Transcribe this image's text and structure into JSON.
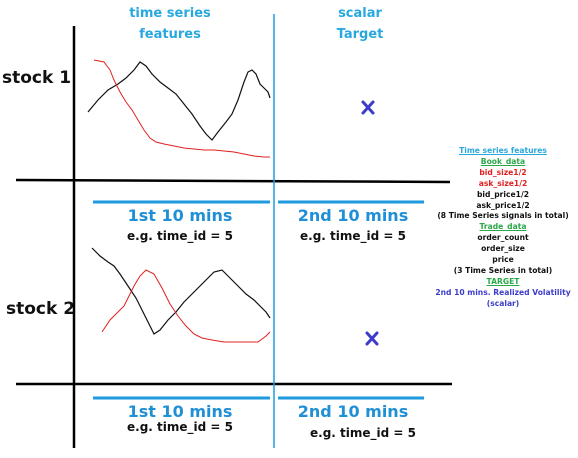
{
  "headers": {
    "left_line1": "time series",
    "left_line2": "features",
    "right_line1": "scalar",
    "right_line2": "Target"
  },
  "rows": [
    {
      "label": "stock 1",
      "left_segment": "1st 10 mins",
      "left_example": "e.g. time_id = 5",
      "right_segment": "2nd 10 mins",
      "right_example": "e.g. time_id = 5"
    },
    {
      "label": "stock 2",
      "left_segment": "1st 10 mins",
      "left_example": "e.g. time_id = 5",
      "right_segment": "2nd 10 mins",
      "right_example": "e.g. time_id = 5"
    }
  ],
  "target_marker": "x-mark-icon",
  "legend": {
    "title": "Time series features",
    "book_heading": "Book_data",
    "book_items_red": [
      "bid_size1/2",
      "ask_size1/2"
    ],
    "book_items_black": [
      "bid_price1/2",
      "ask_price1/2"
    ],
    "book_note": "(8 Time Series signals in total)",
    "trade_heading": "Trade_data",
    "trade_items": [
      "order_count",
      "order_size",
      "price"
    ],
    "trade_note": "(3 Time Series in total)",
    "target_heading": "TARGET",
    "target_line1": "2nd 10 mins. Realized Volatility",
    "target_line2": "(scalar)"
  },
  "colors": {
    "header_blue": "#29a8e0",
    "segment_blue": "#1f8fd6",
    "divider_blue": "#1e9be0",
    "red_series": "#e02020",
    "green_heading": "#2aa84a",
    "target_marker": "#3c3ccc"
  }
}
